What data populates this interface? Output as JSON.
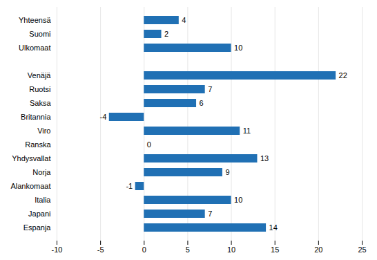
{
  "chart_data": {
    "type": "bar",
    "orientation": "horizontal",
    "categories": [
      "Yhteensä",
      "Suomi",
      "Ulkomaat",
      null,
      "Venäjä",
      "Ruotsi",
      "Saksa",
      "Britannia",
      "Viro",
      "Ranska",
      "Yhdysvallat",
      "Norja",
      "Alankomaat",
      "Italia",
      "Japani",
      "Espanja"
    ],
    "values": [
      4,
      2,
      10,
      null,
      22,
      7,
      6,
      -4,
      11,
      0,
      13,
      9,
      -1,
      10,
      7,
      14
    ],
    "color": "#2070B4",
    "xlim": [
      -10,
      25
    ],
    "xticks": [
      -10,
      -5,
      0,
      5,
      10,
      15,
      20,
      25
    ],
    "grid": true,
    "data_labels": true
  }
}
